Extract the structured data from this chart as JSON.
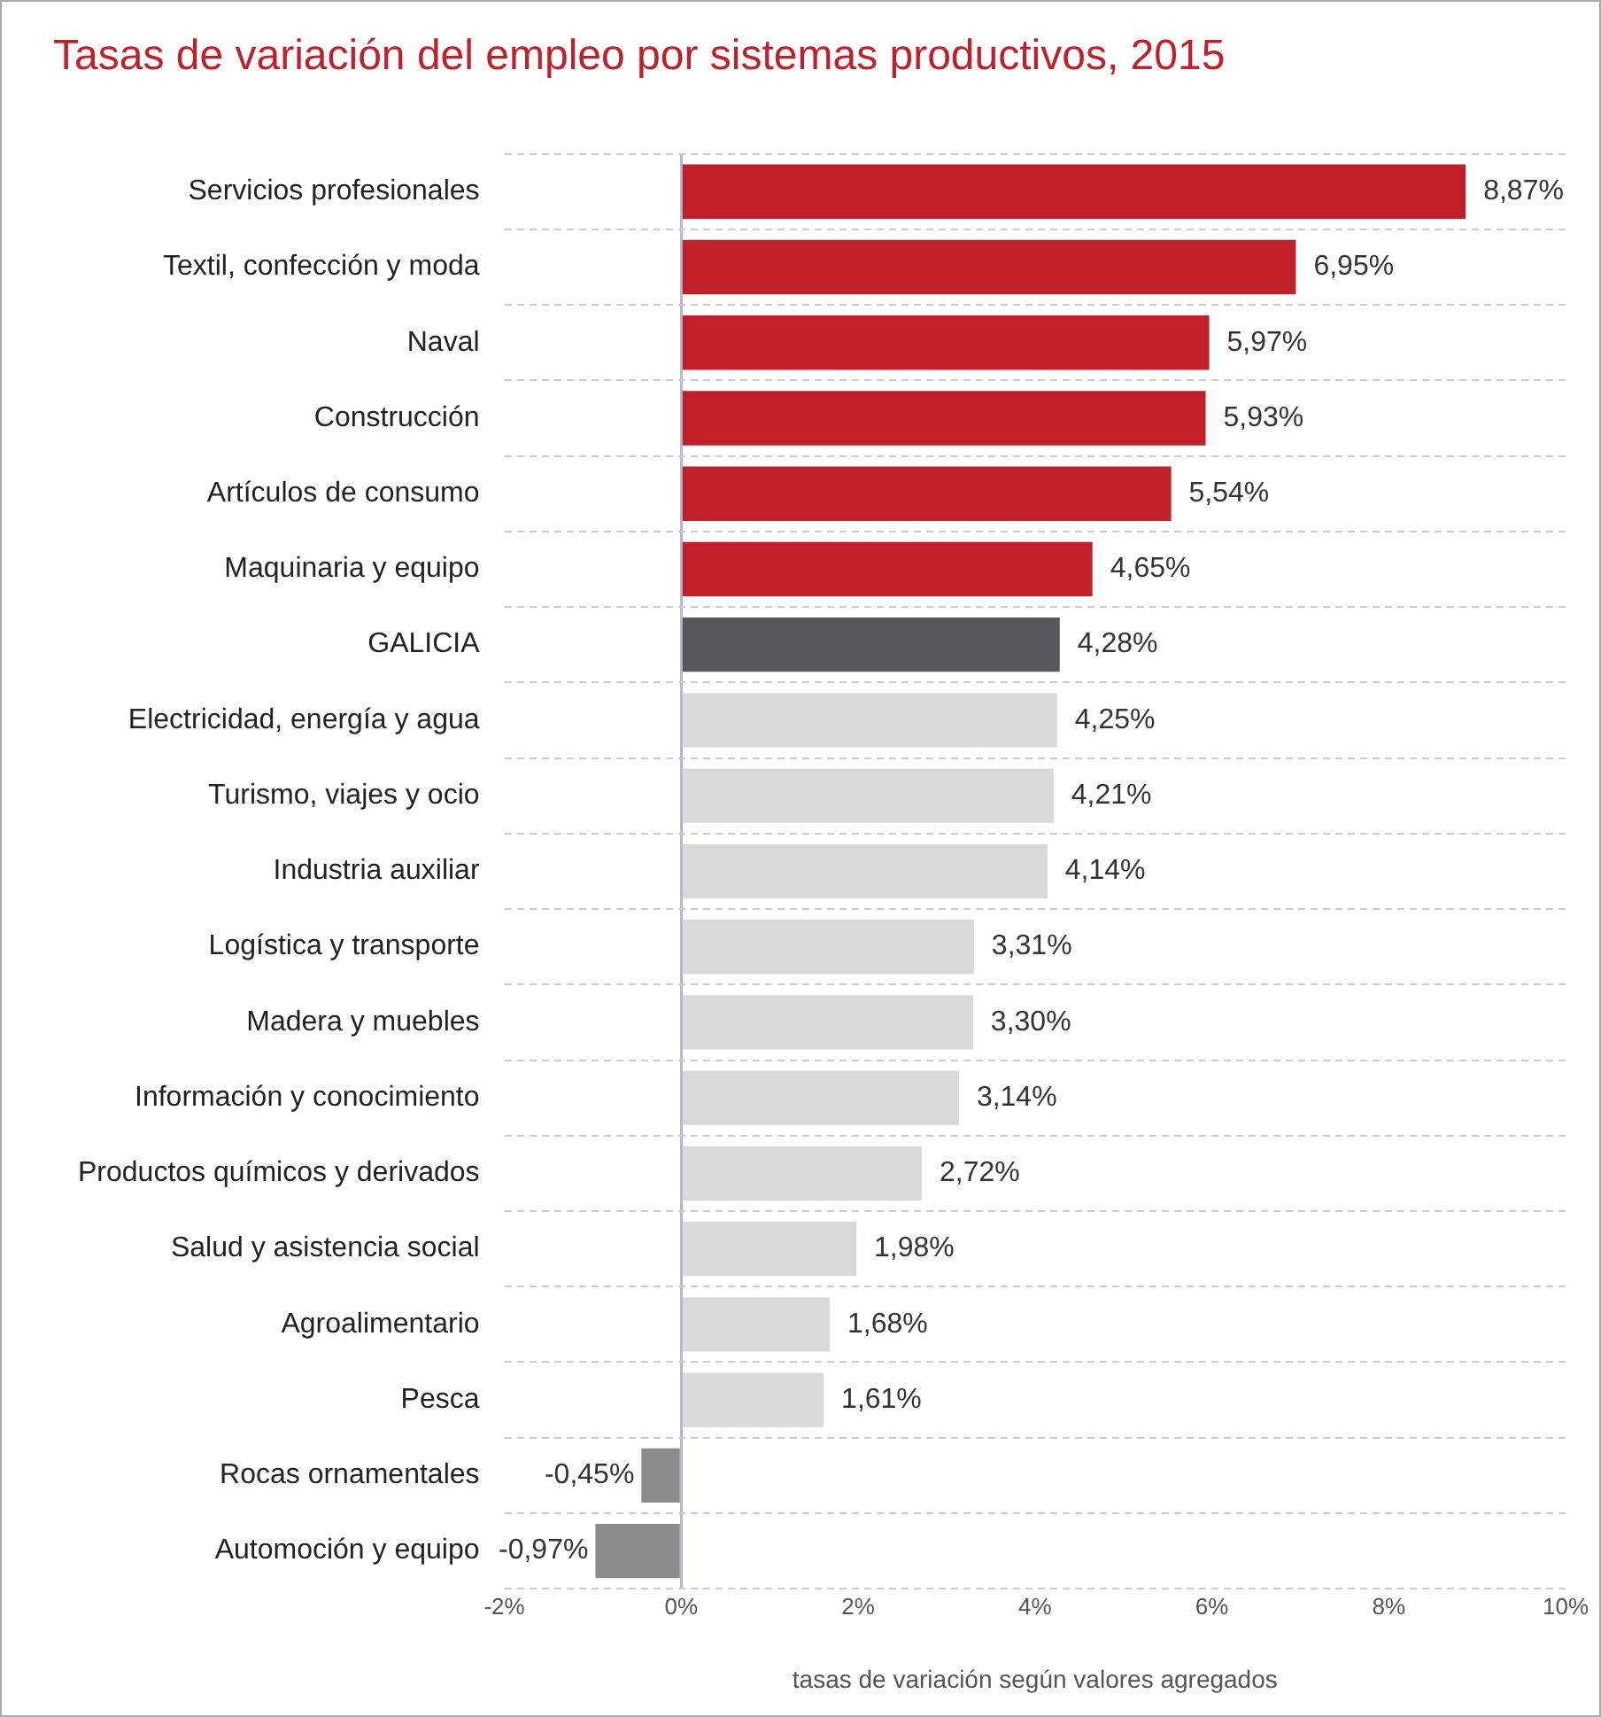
{
  "chart_data": {
    "type": "bar",
    "orientation": "horizontal",
    "title": "Tasas de variación del empleo por sistemas productivos, 2015",
    "xlabel": "tasas de variación según valores agregados",
    "categories": [
      "Servicios profesionales",
      "Textil, confección y moda",
      "Naval",
      "Construcción",
      "Artículos de consumo",
      "Maquinaria y equipo",
      "GALICIA",
      "Electricidad, energía y agua",
      "Turismo, viajes y ocio",
      "Industria auxiliar",
      "Logística y transporte",
      "Madera y muebles",
      "Información y conocimiento",
      "Productos químicos y derivados",
      "Salud y asistencia social",
      "Agroalimentario",
      "Pesca",
      "Rocas ornamentales",
      "Automoción y equipo"
    ],
    "values": [
      8.87,
      6.95,
      5.97,
      5.93,
      5.54,
      4.65,
      4.28,
      4.25,
      4.21,
      4.14,
      3.31,
      3.3,
      3.14,
      2.72,
      1.98,
      1.68,
      1.61,
      -0.45,
      -0.97
    ],
    "value_labels": [
      "8,87%",
      "6,95%",
      "5,97%",
      "5,93%",
      "5,54%",
      "4,65%",
      "4,28%",
      "4,25%",
      "4,21%",
      "4,14%",
      "3,31%",
      "3,30%",
      "3,14%",
      "2,72%",
      "1,98%",
      "1,68%",
      "1,61%",
      "-0,45%",
      "-0,97%"
    ],
    "colors": [
      "#c0202a",
      "#c0202a",
      "#c0202a",
      "#c0202a",
      "#c0202a",
      "#c0202a",
      "#58575c",
      "#d9d9d9",
      "#d9d9d9",
      "#d9d9d9",
      "#d9d9d9",
      "#d9d9d9",
      "#d9d9d9",
      "#d9d9d9",
      "#d9d9d9",
      "#d9d9d9",
      "#d9d9d9",
      "#8c8c8c",
      "#8c8c8c"
    ],
    "xlim": [
      -2,
      10
    ],
    "xticks": [
      {
        "value": -2,
        "label": "-2%"
      },
      {
        "value": 0,
        "label": "0%"
      },
      {
        "value": 2,
        "label": "2%"
      },
      {
        "value": 4,
        "label": "4%"
      },
      {
        "value": 6,
        "label": "6%"
      },
      {
        "value": 8,
        "label": "8%"
      },
      {
        "value": 10,
        "label": "10%"
      }
    ],
    "grid": "y",
    "legend": false
  }
}
